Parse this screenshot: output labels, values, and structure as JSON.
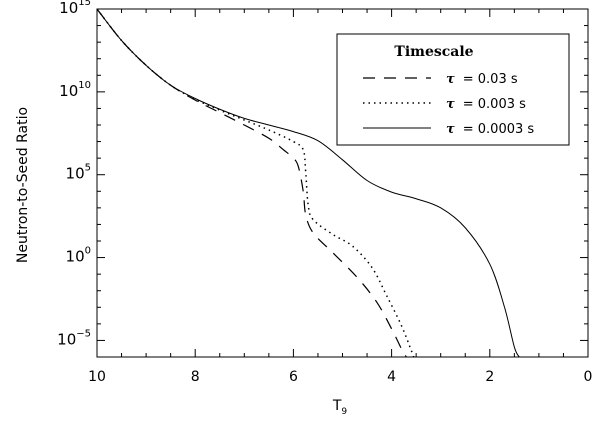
{
  "chart_data": {
    "type": "line",
    "xlabel": "T",
    "xlabel_sub": "9",
    "ylabel": "Neutron-to-Seed Ratio",
    "xlim": [
      10,
      0
    ],
    "ylim_log10": [
      -6,
      15
    ],
    "y_scale": "log",
    "grid": false,
    "legend_position": "top-right",
    "x_ticks": [
      10,
      8,
      6,
      4,
      2,
      0
    ],
    "y_ticks": [
      {
        "base": "10",
        "exp": "15",
        "value_log10": 15
      },
      {
        "base": "10",
        "exp": "10",
        "value_log10": 10
      },
      {
        "base": "10",
        "exp": "5",
        "value_log10": 5
      },
      {
        "base": "10",
        "exp": "0",
        "value_log10": 0
      },
      {
        "base": "10",
        "exp": "−5",
        "value_log10": -5
      }
    ],
    "legend_title": "Timescale",
    "series": [
      {
        "name": "τ = 0.03 s",
        "tau_symbol": "τ",
        "label_rest": "= 0.03 s",
        "style": "dashed",
        "points_log10": [
          [
            10,
            15
          ],
          [
            9.5,
            13.1
          ],
          [
            9,
            11.6
          ],
          [
            8.5,
            10.4
          ],
          [
            8,
            9.5
          ],
          [
            7.5,
            8.75
          ],
          [
            7,
            8.0
          ],
          [
            6.5,
            7.2
          ],
          [
            6.2,
            6.5
          ],
          [
            6,
            6.0
          ],
          [
            5.9,
            5.5
          ],
          [
            5.8,
            4.0
          ],
          [
            5.75,
            2.6
          ],
          [
            5.6,
            1.5
          ],
          [
            5.2,
            0.3
          ],
          [
            4.7,
            -1.2
          ],
          [
            4.3,
            -2.7
          ],
          [
            4,
            -4.3
          ],
          [
            3.8,
            -5.5
          ],
          [
            3.7,
            -6
          ]
        ]
      },
      {
        "name": "τ = 0.003 s",
        "tau_symbol": "τ",
        "label_rest": "= 0.003 s",
        "style": "dotted",
        "points_log10": [
          [
            10,
            15
          ],
          [
            9.5,
            13.1
          ],
          [
            9,
            11.6
          ],
          [
            8.5,
            10.4
          ],
          [
            8,
            9.55
          ],
          [
            7.5,
            8.9
          ],
          [
            7,
            8.3
          ],
          [
            6.5,
            7.7
          ],
          [
            6,
            7.0
          ],
          [
            5.8,
            6.5
          ],
          [
            5.75,
            5.2
          ],
          [
            5.7,
            3.2
          ],
          [
            5.6,
            2.3
          ],
          [
            5.2,
            1.4
          ],
          [
            4.8,
            0.7
          ],
          [
            4.4,
            -0.6
          ],
          [
            4.1,
            -2.3
          ],
          [
            3.8,
            -4.1
          ],
          [
            3.6,
            -5.6
          ],
          [
            3.55,
            -6
          ]
        ]
      },
      {
        "name": "τ = 0.0003 s",
        "tau_symbol": "τ",
        "label_rest": "= 0.0003 s",
        "style": "solid",
        "points_log10": [
          [
            10,
            15
          ],
          [
            9.5,
            13.1
          ],
          [
            9,
            11.6
          ],
          [
            8.5,
            10.4
          ],
          [
            8,
            9.6
          ],
          [
            7.5,
            8.95
          ],
          [
            7,
            8.4
          ],
          [
            6.5,
            8.0
          ],
          [
            6,
            7.6
          ],
          [
            5.5,
            7.05
          ],
          [
            5,
            5.9
          ],
          [
            4.5,
            4.65
          ],
          [
            4,
            3.95
          ],
          [
            3.5,
            3.55
          ],
          [
            3,
            3.0
          ],
          [
            2.5,
            1.8
          ],
          [
            2,
            -0.4
          ],
          [
            1.7,
            -3.0
          ],
          [
            1.5,
            -5.4
          ],
          [
            1.4,
            -6
          ]
        ]
      }
    ]
  }
}
